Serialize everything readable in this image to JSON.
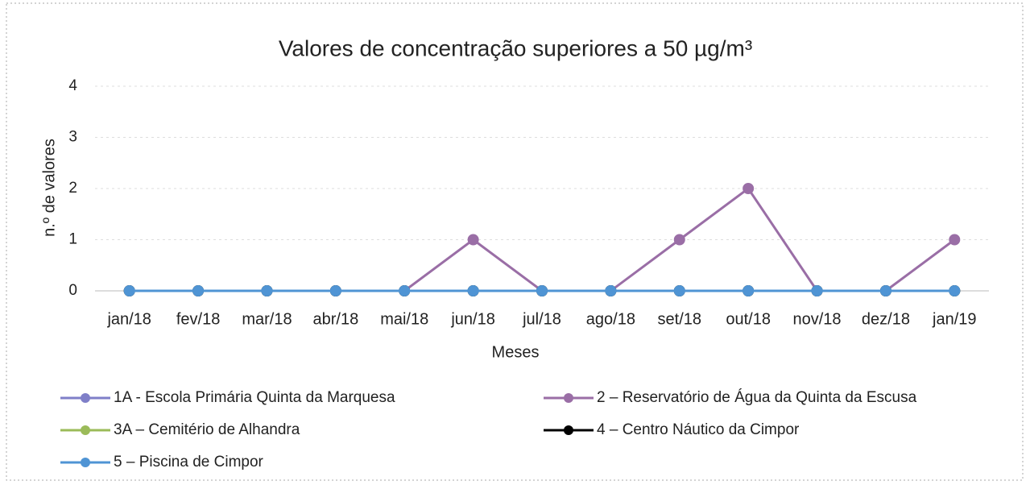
{
  "chart_data": {
    "type": "line",
    "title": "Valores de concentração superiores a 50 µg/m³",
    "x_label": "Meses",
    "y_label": "n.º de valores",
    "categories": [
      "jan/18",
      "fev/18",
      "mar/18",
      "abr/18",
      "mai/18",
      "jun/18",
      "jul/18",
      "ago/18",
      "set/18",
      "out/18",
      "nov/18",
      "dez/18",
      "jan/19"
    ],
    "series": [
      {
        "name": "1A - Escola Primária Quinta da Marquesa",
        "color": "#7f7fc8",
        "values": [
          0,
          0,
          0,
          0,
          0,
          0,
          0,
          0,
          0,
          0,
          0,
          0,
          0
        ]
      },
      {
        "name": "2 – Reservatório de Água da Quinta da Escusa",
        "color": "#9a6ea6",
        "values": [
          0,
          0,
          0,
          0,
          0,
          1,
          0,
          0,
          1,
          2,
          0,
          0,
          1
        ]
      },
      {
        "name": "3A – Cemitério de Alhandra",
        "color": "#9bbb59",
        "values": [
          0,
          0,
          0,
          0,
          0,
          0,
          0,
          0,
          0,
          0,
          0,
          0,
          0
        ]
      },
      {
        "name": "4 – Centro Náutico da Cimpor",
        "color": "#000000",
        "values": [
          0,
          0,
          0,
          0,
          0,
          0,
          0,
          0,
          0,
          0,
          0,
          0,
          0
        ]
      },
      {
        "name": "5 – Piscina de Cimpor",
        "color": "#4f94d4",
        "values": [
          0,
          0,
          0,
          0,
          0,
          0,
          0,
          0,
          0,
          0,
          0,
          0,
          0
        ]
      }
    ],
    "ylim": [
      0,
      4
    ],
    "yticks": [
      0,
      1,
      2,
      3,
      4
    ],
    "grid": true
  }
}
